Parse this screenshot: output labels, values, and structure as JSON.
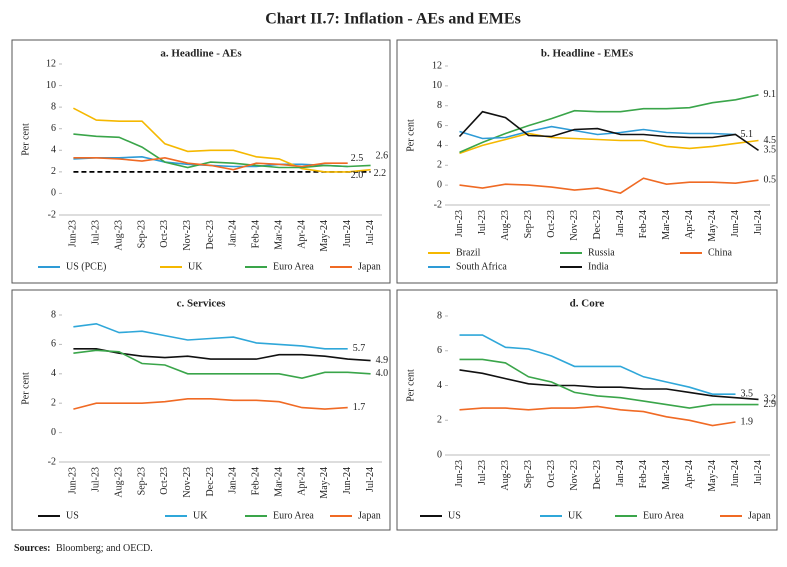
{
  "title": "Chart II.7: Inflation - AEs and EMEs",
  "source_label": "Sources:",
  "source": "Bloomberg; and OECD.",
  "chart_data": [
    {
      "type": "line",
      "title": "a. Headline - AEs",
      "ylabel": "Per cent",
      "categories": [
        "Jun-23",
        "Jul-23",
        "Aug-23",
        "Sep-23",
        "Oct-23",
        "Nov-23",
        "Dec-23",
        "Jan-24",
        "Feb-24",
        "Mar-24",
        "Apr-24",
        "May-24",
        "Jun-24",
        "Jul-24"
      ],
      "ylim": [
        -2,
        12
      ],
      "yticks": [
        -2,
        0,
        2,
        4,
        6,
        8,
        10,
        12
      ],
      "target_line": 2,
      "series": [
        {
          "name": "US (PCE)",
          "color": "#2e9bd6",
          "values": [
            3.2,
            3.3,
            3.3,
            3.4,
            2.9,
            2.7,
            2.6,
            2.5,
            2.5,
            2.7,
            2.7,
            2.6,
            2.5,
            null
          ],
          "value_labels": [
            null,
            null,
            null,
            null,
            null,
            null,
            null,
            null,
            null,
            null,
            null,
            null,
            "2.5",
            null
          ]
        },
        {
          "name": "UK",
          "color": "#f5b800",
          "values": [
            7.9,
            6.8,
            6.7,
            6.7,
            4.6,
            3.9,
            4.0,
            4.0,
            3.4,
            3.2,
            2.3,
            2.0,
            2.0,
            2.2
          ],
          "value_labels": [
            null,
            null,
            null,
            null,
            null,
            null,
            null,
            null,
            null,
            null,
            null,
            null,
            "2.0",
            "2.2"
          ]
        },
        {
          "name": "Euro Area",
          "color": "#3aa54a",
          "values": [
            5.5,
            5.3,
            5.2,
            4.3,
            2.9,
            2.4,
            2.9,
            2.8,
            2.6,
            2.4,
            2.4,
            2.6,
            2.5,
            2.6
          ],
          "value_labels": [
            null,
            null,
            null,
            null,
            null,
            null,
            null,
            null,
            null,
            null,
            null,
            null,
            null,
            "2.6"
          ]
        },
        {
          "name": "Japan",
          "color": "#f06a24",
          "values": [
            3.3,
            3.3,
            3.2,
            3.0,
            3.3,
            2.8,
            2.6,
            2.2,
            2.8,
            2.7,
            2.5,
            2.8,
            2.8,
            null
          ]
        }
      ]
    },
    {
      "type": "line",
      "title": "b. Headline - EMEs",
      "ylabel": "Per cent",
      "categories": [
        "Jun-23",
        "Jul-23",
        "Aug-23",
        "Sep-23",
        "Oct-23",
        "Nov-23",
        "Dec-23",
        "Jan-24",
        "Feb-24",
        "Mar-24",
        "Apr-24",
        "May-24",
        "Jun-24",
        "Jul-24"
      ],
      "ylim": [
        -2,
        12
      ],
      "yticks": [
        -2,
        0,
        2,
        4,
        6,
        8,
        10,
        12
      ],
      "series": [
        {
          "name": "Brazil",
          "color": "#f5b800",
          "values": [
            3.2,
            4.0,
            4.6,
            5.2,
            4.8,
            4.7,
            4.6,
            4.5,
            4.5,
            3.9,
            3.7,
            3.9,
            4.2,
            4.5
          ],
          "value_labels": [
            null,
            null,
            null,
            null,
            null,
            null,
            null,
            null,
            null,
            null,
            null,
            null,
            null,
            "4.5"
          ]
        },
        {
          "name": "Russia",
          "color": "#3aa54a",
          "values": [
            3.3,
            4.3,
            5.2,
            6.0,
            6.7,
            7.5,
            7.4,
            7.4,
            7.7,
            7.7,
            7.8,
            8.3,
            8.6,
            9.1
          ],
          "value_labels": [
            null,
            null,
            null,
            null,
            null,
            null,
            null,
            null,
            null,
            null,
            null,
            null,
            null,
            "9.1"
          ]
        },
        {
          "name": "China",
          "color": "#ef6a24",
          "values": [
            0.0,
            -0.3,
            0.1,
            0.0,
            -0.2,
            -0.5,
            -0.3,
            -0.8,
            0.7,
            0.1,
            0.3,
            0.3,
            0.2,
            0.5
          ],
          "value_labels": [
            null,
            null,
            null,
            null,
            null,
            null,
            null,
            null,
            null,
            null,
            null,
            null,
            null,
            "0.5"
          ]
        },
        {
          "name": "South Africa",
          "color": "#2e9bd6",
          "values": [
            5.4,
            4.7,
            4.8,
            5.4,
            5.9,
            5.5,
            5.1,
            5.3,
            5.6,
            5.3,
            5.2,
            5.2,
            5.1,
            null
          ],
          "value_labels": [
            null,
            null,
            null,
            null,
            null,
            null,
            null,
            null,
            null,
            null,
            null,
            null,
            "5.1",
            null
          ]
        },
        {
          "name": "India",
          "color": "#111111",
          "values": [
            4.9,
            7.4,
            6.8,
            5.0,
            4.9,
            5.6,
            5.7,
            5.1,
            5.1,
            4.9,
            4.8,
            4.8,
            5.1,
            3.5
          ],
          "value_labels": [
            null,
            null,
            null,
            null,
            null,
            null,
            null,
            null,
            null,
            null,
            null,
            null,
            null,
            "3.5"
          ]
        }
      ]
    },
    {
      "type": "line",
      "title": "c. Services",
      "ylabel": "Per cent",
      "categories": [
        "Jun-23",
        "Jul-23",
        "Aug-23",
        "Sep-23",
        "Oct-23",
        "Nov-23",
        "Dec-23",
        "Jan-24",
        "Feb-24",
        "Mar-24",
        "Apr-24",
        "May-24",
        "Jun-24",
        "Jul-24"
      ],
      "ylim": [
        -2,
        8
      ],
      "yticks": [
        -2,
        0,
        2,
        4,
        6,
        8
      ],
      "series": [
        {
          "name": "US",
          "color": "#111111",
          "values": [
            5.7,
            5.7,
            5.4,
            5.2,
            5.1,
            5.2,
            5.0,
            5.0,
            5.0,
            5.3,
            5.3,
            5.2,
            5.0,
            4.9
          ],
          "value_labels": [
            null,
            null,
            null,
            null,
            null,
            null,
            null,
            null,
            null,
            null,
            null,
            null,
            null,
            "4.9"
          ]
        },
        {
          "name": "UK",
          "color": "#2fa7d9",
          "values": [
            7.2,
            7.4,
            6.8,
            6.9,
            6.6,
            6.3,
            6.4,
            6.5,
            6.1,
            6.0,
            5.9,
            5.7,
            5.7,
            null
          ],
          "value_labels": [
            null,
            null,
            null,
            null,
            null,
            null,
            null,
            null,
            null,
            null,
            null,
            null,
            "5.7",
            null
          ]
        },
        {
          "name": "Euro Area",
          "color": "#3aa54a",
          "values": [
            5.4,
            5.6,
            5.5,
            4.7,
            4.6,
            4.0,
            4.0,
            4.0,
            4.0,
            4.0,
            3.7,
            4.1,
            4.1,
            4.0
          ],
          "value_labels": [
            null,
            null,
            null,
            null,
            null,
            null,
            null,
            null,
            null,
            null,
            null,
            null,
            null,
            "4.0"
          ]
        },
        {
          "name": "Japan",
          "color": "#f06a24",
          "values": [
            1.6,
            2.0,
            2.0,
            2.0,
            2.1,
            2.3,
            2.3,
            2.2,
            2.2,
            2.1,
            1.7,
            1.6,
            1.7,
            null
          ],
          "value_labels": [
            null,
            null,
            null,
            null,
            null,
            null,
            null,
            null,
            null,
            null,
            null,
            null,
            "1.7",
            null
          ]
        }
      ]
    },
    {
      "type": "line",
      "title": "d. Core",
      "ylabel": "Per cent",
      "categories": [
        "Jun-23",
        "Jul-23",
        "Aug-23",
        "Sep-23",
        "Oct-23",
        "Nov-23",
        "Dec-23",
        "Jan-24",
        "Feb-24",
        "Mar-24",
        "Apr-24",
        "May-24",
        "Jun-24",
        "Jul-24"
      ],
      "ylim": [
        0,
        8
      ],
      "yticks": [
        0,
        2,
        4,
        6,
        8
      ],
      "series": [
        {
          "name": "US",
          "color": "#111111",
          "values": [
            4.9,
            4.7,
            4.4,
            4.1,
            4.0,
            4.0,
            3.9,
            3.9,
            3.8,
            3.8,
            3.6,
            3.4,
            3.3,
            3.2
          ],
          "value_labels": [
            null,
            null,
            null,
            null,
            null,
            null,
            null,
            null,
            null,
            null,
            null,
            null,
            null,
            "3.2"
          ]
        },
        {
          "name": "UK",
          "color": "#2fa7d9",
          "values": [
            6.9,
            6.9,
            6.2,
            6.1,
            5.7,
            5.1,
            5.1,
            5.1,
            4.5,
            4.2,
            3.9,
            3.5,
            3.5,
            null
          ],
          "value_labels": [
            null,
            null,
            null,
            null,
            null,
            null,
            null,
            null,
            null,
            null,
            null,
            null,
            "3.5",
            null
          ]
        },
        {
          "name": "Euro Area",
          "color": "#3aa54a",
          "values": [
            5.5,
            5.5,
            5.3,
            4.5,
            4.2,
            3.6,
            3.4,
            3.3,
            3.1,
            2.9,
            2.7,
            2.9,
            2.9,
            2.9
          ],
          "value_labels": [
            null,
            null,
            null,
            null,
            null,
            null,
            null,
            null,
            null,
            null,
            null,
            null,
            null,
            "2.9"
          ]
        },
        {
          "name": "Japan",
          "color": "#f06a24",
          "values": [
            2.6,
            2.7,
            2.7,
            2.6,
            2.7,
            2.7,
            2.8,
            2.6,
            2.5,
            2.2,
            2.0,
            1.7,
            1.9,
            null
          ],
          "value_labels": [
            null,
            null,
            null,
            null,
            null,
            null,
            null,
            null,
            null,
            null,
            null,
            null,
            "1.9",
            null
          ]
        }
      ]
    }
  ]
}
